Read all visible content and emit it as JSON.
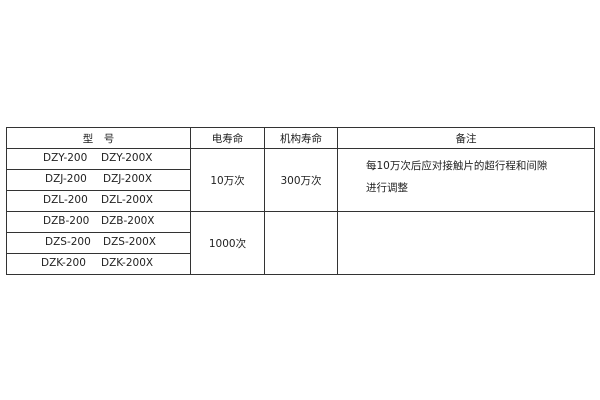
{
  "headers": {
    "model": "型　号",
    "electrical_life": "电寿命",
    "mechanical_life": "机构寿命",
    "remarks": "备注"
  },
  "rows": [
    {
      "model_a": "DZY-200",
      "model_b": "DZY-200X"
    },
    {
      "model_a": "DZJ-200",
      "model_b": "DZJ-200X"
    },
    {
      "model_a": "DZL-200",
      "model_b": "DZL-200X"
    },
    {
      "model_a": "DZB-200",
      "model_b": "DZB-200X"
    },
    {
      "model_a": "DZS-200",
      "model_b": "DZS-200X"
    },
    {
      "model_a": "DZK-200",
      "model_b": "DZK-200X"
    }
  ],
  "groups": [
    {
      "electrical_life": "10万次",
      "mechanical_life": "300万次",
      "remark_line1": "每10万次后应对接触片的超行程和间隙",
      "remark_line2": "进行调整"
    },
    {
      "electrical_life": "1000次",
      "mechanical_life": "",
      "remark_line1": "",
      "remark_line2": ""
    }
  ]
}
